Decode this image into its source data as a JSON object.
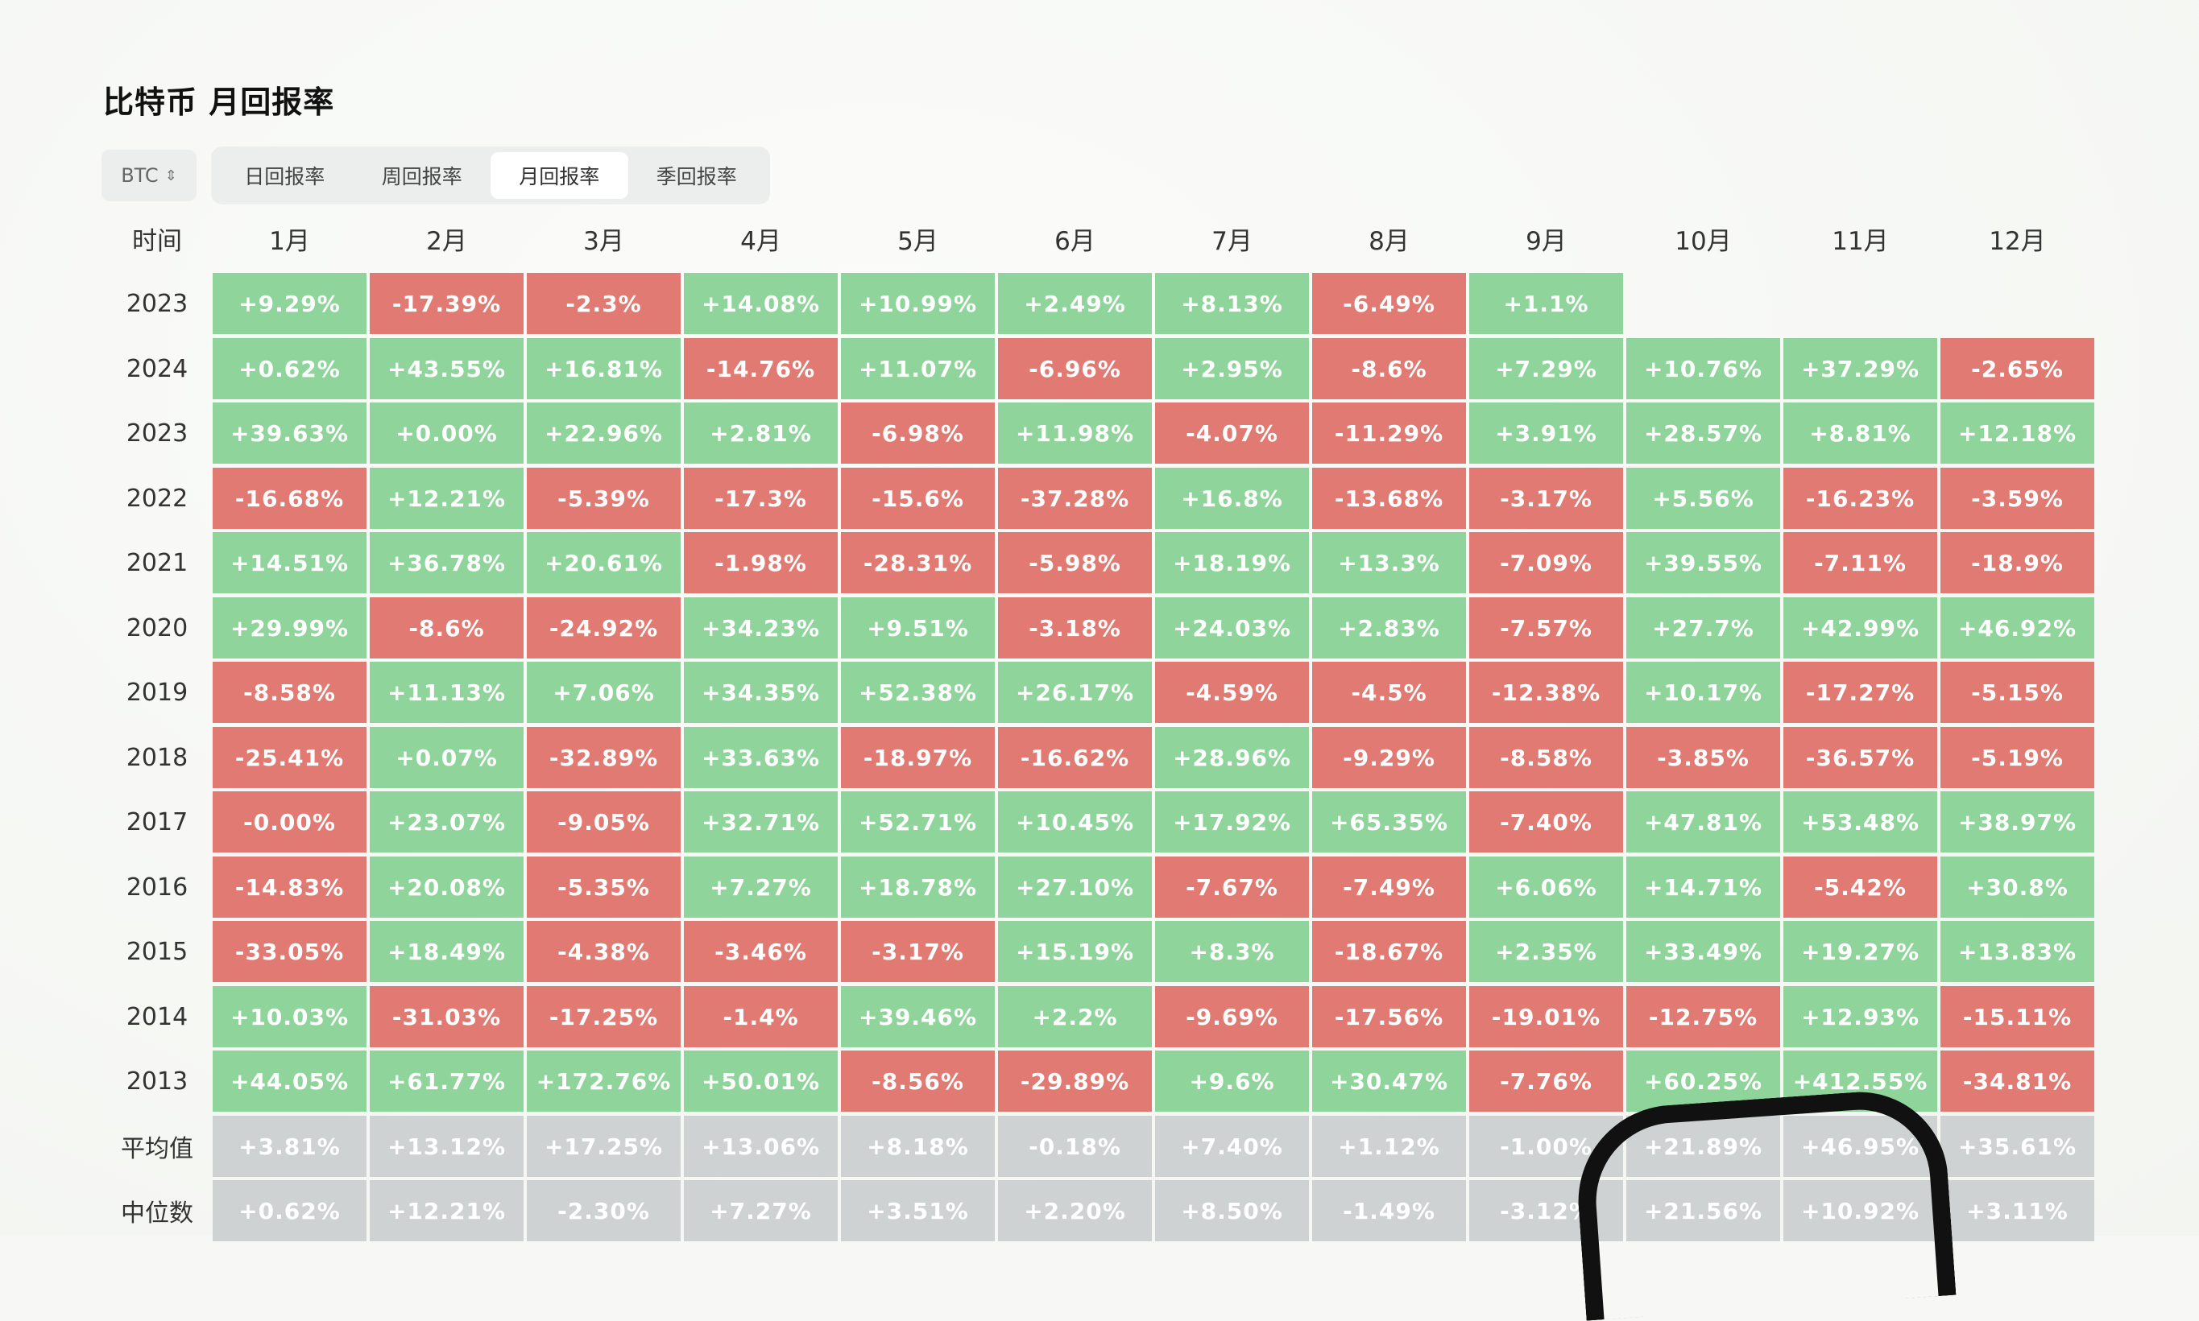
{
  "page": {
    "title": "比特币 月回报率"
  },
  "controls": {
    "asset": "BTC",
    "tabs": [
      {
        "label": "日回报率",
        "active": false
      },
      {
        "label": "周回报率",
        "active": false
      },
      {
        "label": "月回报率",
        "active": true
      },
      {
        "label": "季回报率",
        "active": false
      }
    ]
  },
  "colors": {
    "positive": "#8fd49a",
    "negative": "#e07a72",
    "stat": "#cfd2d3"
  },
  "table": {
    "header": [
      "时间",
      "1月",
      "2月",
      "3月",
      "4月",
      "5月",
      "6月",
      "7月",
      "8月",
      "9月",
      "10月",
      "11月",
      "12月"
    ],
    "rows": [
      {
        "label": "2023",
        "values": [
          "+9.29%",
          "-17.39%",
          "-2.3%",
          "+14.08%",
          "+10.99%",
          "+2.49%",
          "+8.13%",
          "-6.49%",
          "+1.1%",
          "",
          "",
          ""
        ]
      },
      {
        "label": "2024",
        "values": [
          "+0.62%",
          "+43.55%",
          "+16.81%",
          "-14.76%",
          "+11.07%",
          "-6.96%",
          "+2.95%",
          "-8.6%",
          "+7.29%",
          "+10.76%",
          "+37.29%",
          "-2.65%"
        ]
      },
      {
        "label": "2023",
        "values": [
          "+39.63%",
          "+0.00%",
          "+22.96%",
          "+2.81%",
          "-6.98%",
          "+11.98%",
          "-4.07%",
          "-11.29%",
          "+3.91%",
          "+28.57%",
          "+8.81%",
          "+12.18%"
        ]
      },
      {
        "label": "2022",
        "values": [
          "-16.68%",
          "+12.21%",
          "-5.39%",
          "-17.3%",
          "-15.6%",
          "-37.28%",
          "+16.8%",
          "-13.68%",
          "-3.17%",
          "+5.56%",
          "-16.23%",
          "-3.59%"
        ]
      },
      {
        "label": "2021",
        "values": [
          "+14.51%",
          "+36.78%",
          "+20.61%",
          "-1.98%",
          "-28.31%",
          "-5.98%",
          "+18.19%",
          "+13.3%",
          "-7.09%",
          "+39.55%",
          "-7.11%",
          "-18.9%"
        ]
      },
      {
        "label": "2020",
        "values": [
          "+29.99%",
          "-8.6%",
          "-24.92%",
          "+34.23%",
          "+9.51%",
          "-3.18%",
          "+24.03%",
          "+2.83%",
          "-7.57%",
          "+27.7%",
          "+42.99%",
          "+46.92%"
        ]
      },
      {
        "label": "2019",
        "values": [
          "-8.58%",
          "+11.13%",
          "+7.06%",
          "+34.35%",
          "+52.38%",
          "+26.17%",
          "-4.59%",
          "-4.5%",
          "-12.38%",
          "+10.17%",
          "-17.27%",
          "-5.15%"
        ]
      },
      {
        "label": "2018",
        "values": [
          "-25.41%",
          "+0.07%",
          "-32.89%",
          "+33.63%",
          "-18.97%",
          "-16.62%",
          "+28.96%",
          "-9.29%",
          "-8.58%",
          "-3.85%",
          "-36.57%",
          "-5.19%"
        ]
      },
      {
        "label": "2017",
        "values": [
          "-0.00%",
          "+23.07%",
          "-9.05%",
          "+32.71%",
          "+52.71%",
          "+10.45%",
          "+17.92%",
          "+65.35%",
          "-7.40%",
          "+47.81%",
          "+53.48%",
          "+38.97%"
        ]
      },
      {
        "label": "2016",
        "values": [
          "-14.83%",
          "+20.08%",
          "-5.35%",
          "+7.27%",
          "+18.78%",
          "+27.10%",
          "-7.67%",
          "-7.49%",
          "+6.06%",
          "+14.71%",
          "-5.42%",
          "+30.8%"
        ]
      },
      {
        "label": "2015",
        "values": [
          "-33.05%",
          "+18.49%",
          "-4.38%",
          "-3.46%",
          "-3.17%",
          "+15.19%",
          "+8.3%",
          "-18.67%",
          "+2.35%",
          "+33.49%",
          "+19.27%",
          "+13.83%"
        ]
      },
      {
        "label": "2014",
        "values": [
          "+10.03%",
          "-31.03%",
          "-17.25%",
          "-1.4%",
          "+39.46%",
          "+2.2%",
          "-9.69%",
          "-17.56%",
          "-19.01%",
          "-12.75%",
          "+12.93%",
          "-15.11%"
        ]
      },
      {
        "label": "2013",
        "values": [
          "+44.05%",
          "+61.77%",
          "+172.76%",
          "+50.01%",
          "-8.56%",
          "-29.89%",
          "+9.6%",
          "+30.47%",
          "-7.76%",
          "+60.25%",
          "+412.55%",
          "-34.81%"
        ]
      },
      {
        "label": "平均值",
        "values": [
          "+3.81%",
          "+13.12%",
          "+17.25%",
          "+13.06%",
          "+8.18%",
          "-0.18%",
          "+7.40%",
          "+1.12%",
          "-1.00%",
          "+21.89%",
          "+46.95%",
          "+35.61%"
        ]
      },
      {
        "label": "中位数",
        "values": [
          "+0.62%",
          "+12.21%",
          "-2.30%",
          "+7.27%",
          "+3.51%",
          "+2.20%",
          "+8.50%",
          "-1.49%",
          "-3.12%",
          "+21.56%",
          "+10.92%",
          "+3.11%"
        ]
      }
    ]
  }
}
